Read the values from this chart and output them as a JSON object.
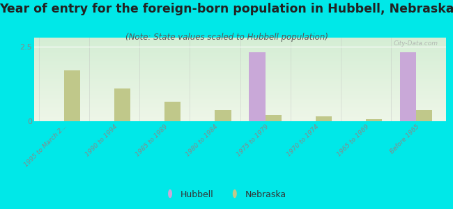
{
  "categories": [
    "1995 to March 2...",
    "1990 to 1994",
    "1985 to 1989",
    "1980 to 1984",
    "1975 to 1979",
    "1970 to 1974",
    "1965 to 1969",
    "Before 1965"
  ],
  "hubbell": [
    0,
    0,
    0,
    0,
    2.3,
    0,
    0,
    2.3
  ],
  "nebraska": [
    1.7,
    1.1,
    0.65,
    0.38,
    0.22,
    0.16,
    0.06,
    0.38
  ],
  "hubbell_color": "#c9a8d8",
  "nebraska_color": "#c0c88a",
  "title": "Year of entry for the foreign-born population in Hubbell, Nebraska",
  "subtitle": "(Note: State values scaled to Hubbell population)",
  "title_fontsize": 12.5,
  "subtitle_fontsize": 8.5,
  "title_color": "#222222",
  "subtitle_color": "#555555",
  "background_color": "#00e8e8",
  "plot_bg_top": "#d4edd4",
  "plot_bg_bottom": "#eef6e8",
  "ylim": [
    0,
    2.8
  ],
  "yticks": [
    0,
    2.5
  ],
  "bar_width": 0.32,
  "watermark": "City-Data.com",
  "tick_color": "#888888",
  "grid_color": "#ffffff",
  "separator_color": "#bbbbbb"
}
